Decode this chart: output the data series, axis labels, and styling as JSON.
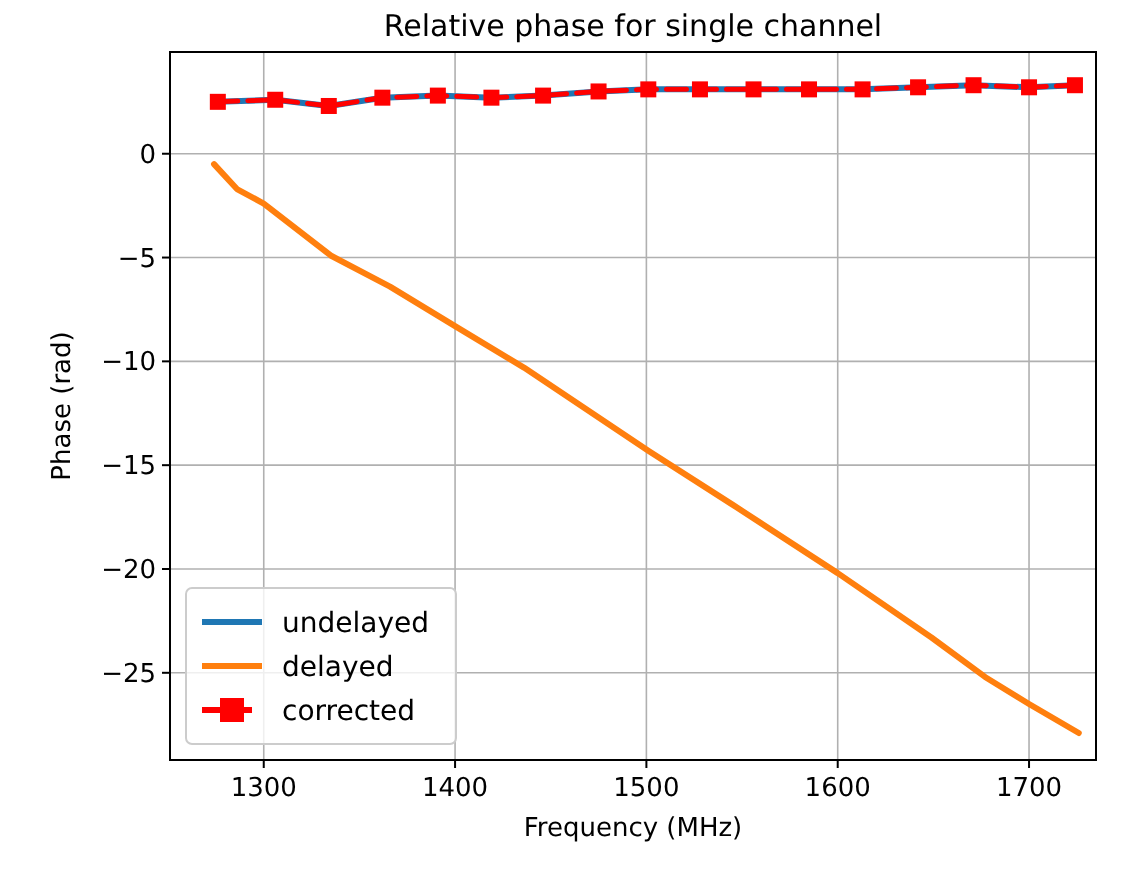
{
  "chart_data": {
    "type": "line",
    "title": "Relative phase for single channel",
    "xlabel": "Frequency (MHz)",
    "ylabel": "Phase (rad)",
    "xlim": [
      1251,
      1735
    ],
    "ylim": [
      -29.2,
      4.9
    ],
    "xticks": [
      1300,
      1400,
      1500,
      1600,
      1700
    ],
    "yticks": [
      0,
      -5,
      -10,
      -15,
      -20,
      -25
    ],
    "grid": true,
    "legend": "bottom left",
    "series": [
      {
        "name": "undelayed",
        "color": "#1f77b4",
        "line_style": "solid",
        "marker": "none",
        "x": [
          1276,
          1306,
          1334,
          1362,
          1391,
          1419,
          1446,
          1475,
          1501,
          1528,
          1556,
          1585,
          1613,
          1642,
          1671,
          1700,
          1724
        ],
        "values": [
          2.5,
          2.6,
          2.3,
          2.7,
          2.8,
          2.7,
          2.8,
          3.0,
          3.1,
          3.1,
          3.1,
          3.1,
          3.1,
          3.2,
          3.3,
          3.2,
          3.3
        ]
      },
      {
        "name": "delayed",
        "color": "#ff7f0e",
        "line_style": "solid",
        "marker": "none",
        "x": [
          1274,
          1286,
          1300,
          1335,
          1366,
          1400,
          1436,
          1501,
          1545,
          1600,
          1649,
          1677,
          1700,
          1726
        ],
        "values": [
          -0.5,
          -1.7,
          -2.4,
          -4.9,
          -6.4,
          -8.3,
          -10.3,
          -14.3,
          -16.9,
          -20.2,
          -23.3,
          -25.2,
          -26.5,
          -27.9
        ]
      },
      {
        "name": "corrected",
        "color": "#ff0000",
        "line_style": "dashed",
        "marker": "square",
        "x": [
          1276,
          1306,
          1334,
          1362,
          1391,
          1419,
          1446,
          1475,
          1501,
          1528,
          1556,
          1585,
          1613,
          1642,
          1671,
          1700,
          1724
        ],
        "values": [
          2.5,
          2.6,
          2.3,
          2.7,
          2.8,
          2.7,
          2.8,
          3.0,
          3.1,
          3.1,
          3.1,
          3.1,
          3.1,
          3.2,
          3.3,
          3.2,
          3.3
        ]
      }
    ]
  }
}
